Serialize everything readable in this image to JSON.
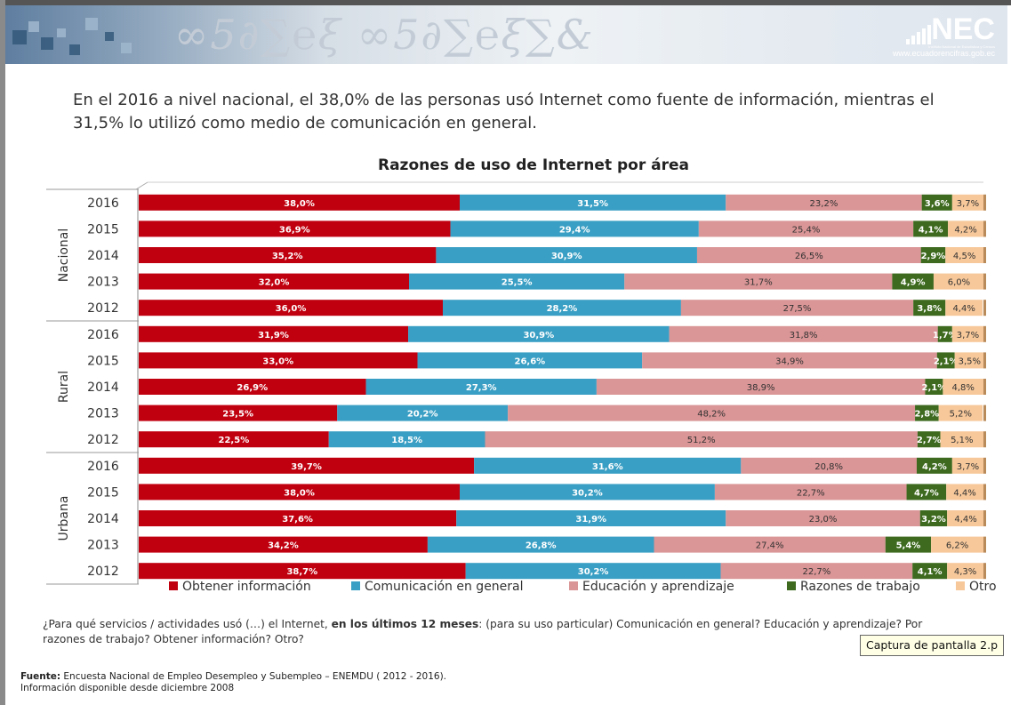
{
  "banner": {
    "logo_text": "NEC",
    "logo_tagline": "Instituto Nacional de Estadística y Censos",
    "logo_url": "www.ecuadorencifras.gob.ec"
  },
  "intro_text": "En el 2016 a nivel nacional, el 38,0% de las personas usó Internet como fuente de información, mientras el 31,5% lo utilizó como medio de comunicación en general.",
  "question": {
    "part1": "¿Para qué servicios / actividades usó (…) el Internet, ",
    "bold": "en los últimos 12 meses",
    "part2": ":  (para su uso particular) Comunicación en general? Educación y aprendizaje? Por razones de trabajo?  Obtener información? Otro?"
  },
  "tooltip": "Captura de pantalla 2.p",
  "source": {
    "label": "Fuente:",
    "text": " Encuesta Nacional de Empleo Desempleo y Subempleo – ENEMDU ( 2012 - 2016).",
    "line2": "Información disponible desde diciembre 2008"
  },
  "chart_data": {
    "type": "bar",
    "orientation": "horizontal",
    "stacked": true,
    "percent_stacked": true,
    "title": "Razones de uso de Internet por área",
    "groups": [
      "Nacional",
      "Rural",
      "Urbana"
    ],
    "categories": [
      "2016",
      "2015",
      "2014",
      "2013",
      "2012",
      "2016",
      "2015",
      "2014",
      "2013",
      "2012",
      "2016",
      "2015",
      "2014",
      "2013",
      "2012"
    ],
    "series": [
      {
        "name": "Obtener información",
        "color": "#c0000f",
        "values": [
          38.0,
          36.9,
          35.2,
          32.0,
          36.0,
          31.9,
          33.0,
          26.9,
          23.5,
          22.5,
          39.7,
          38.0,
          37.6,
          34.2,
          38.7
        ],
        "labels": [
          "38,0%",
          "36,9%",
          "35,2%",
          "32,0%",
          "36,0%",
          "31,9%",
          "33,0%",
          "26,9%",
          "23,5%",
          "22,5%",
          "39,7%",
          "38,0%",
          "37,6%",
          "34,2%",
          "38,7%"
        ]
      },
      {
        "name": "Comunicación en general",
        "color": "#3a9fc4",
        "values": [
          31.5,
          29.4,
          30.9,
          25.5,
          28.2,
          30.9,
          26.6,
          27.3,
          20.2,
          18.5,
          31.6,
          30.2,
          31.9,
          26.8,
          30.2
        ],
        "labels": [
          "31,5%",
          "29,4%",
          "30,9%",
          "25,5%",
          "28,2%",
          "30,9%",
          "26,6%",
          "27,3%",
          "20,2%",
          "18,5%",
          "31,6%",
          "30,2%",
          "31,9%",
          "26,8%",
          "30,2%"
        ]
      },
      {
        "name": "Educación y aprendizaje",
        "color": "#da9596",
        "values": [
          23.2,
          25.4,
          26.5,
          31.7,
          27.5,
          31.8,
          34.9,
          38.9,
          48.2,
          51.2,
          20.8,
          22.7,
          23.0,
          27.4,
          22.7
        ],
        "labels": [
          "23,2%",
          "25,4%",
          "26,5%",
          "31,7%",
          "27,5%",
          "31,8%",
          "34,9%",
          "38,9%",
          "48,2%",
          "51,2%",
          "20,8%",
          "22,7%",
          "23,0%",
          "27,4%",
          "22,7%"
        ]
      },
      {
        "name": "Razones de trabajo",
        "color": "#3d6a1e",
        "values": [
          3.6,
          4.1,
          2.9,
          4.9,
          3.8,
          1.7,
          2.1,
          2.1,
          2.8,
          2.7,
          4.2,
          4.7,
          3.2,
          5.4,
          4.1
        ],
        "labels": [
          "3,6%",
          "4,1%",
          "2,9%",
          "4,9%",
          "3,8%",
          "1,7%",
          "2,1%",
          "2,1%",
          "2,8%",
          "2,7%",
          "4,2%",
          "4,7%",
          "3,2%",
          "5,4%",
          "4,1%"
        ]
      },
      {
        "name": "Otro",
        "color": "#f7c89a",
        "values": [
          3.7,
          4.2,
          4.5,
          6.0,
          4.4,
          3.7,
          3.5,
          4.8,
          5.2,
          5.1,
          3.7,
          4.4,
          4.4,
          6.2,
          4.3
        ],
        "labels": [
          "3,7%",
          "4,2%",
          "4,5%",
          "6,0%",
          "4,4%",
          "3,7%",
          "3,5%",
          "4,8%",
          "5,2%",
          "5,1%",
          "3,7%",
          "4,4%",
          "4,4%",
          "6,2%",
          "4,3%"
        ]
      }
    ],
    "xlim": [
      0,
      100
    ],
    "grid": false,
    "legend_position": "bottom"
  }
}
